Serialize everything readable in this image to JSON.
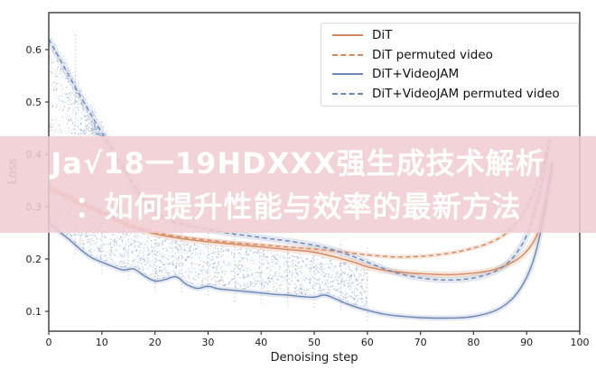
{
  "banner": {
    "line1": "Ja√18一19HDXXX强生成技术解析",
    "line2": "：如何提升性能与效率的最新方法",
    "background_color": "#f0ccd2",
    "text_color": "#ffffff"
  },
  "chart_data": {
    "type": "line",
    "title": "",
    "xlabel": "Denoising step",
    "ylabel": "Loss",
    "xlim": [
      0,
      100
    ],
    "ylim": [
      0.062,
      0.67
    ],
    "x_ticks": [
      0,
      10,
      20,
      30,
      40,
      50,
      60,
      70,
      80,
      90,
      100
    ],
    "y_ticks": [
      0.1,
      0.2,
      0.3,
      0.4,
      0.5,
      0.6
    ],
    "grid": "vertical dotted marker lines every 5 steps from 5 to 60",
    "legend_position": "upper right",
    "colors": {
      "orange": "#d4885f",
      "blue": "#6c86b4",
      "orange_band": "rgba(214,140,98,0.22)",
      "blue_band": "rgba(108,134,180,0.20)",
      "scatter_dot": "#8199c2",
      "spine": "#3a3a3a",
      "tick_label": "#1c1c1c",
      "grid_line": "#7b88a8"
    },
    "series": [
      {
        "name": "DiT",
        "color": "#d4885f",
        "style": "solid",
        "points": [
          [
            0,
            0.335
          ],
          [
            5,
            0.31
          ],
          [
            10,
            0.287
          ],
          [
            15,
            0.263
          ],
          [
            20,
            0.248
          ],
          [
            25,
            0.239
          ],
          [
            30,
            0.233
          ],
          [
            35,
            0.228
          ],
          [
            40,
            0.223
          ],
          [
            45,
            0.218
          ],
          [
            50,
            0.213
          ],
          [
            55,
            0.201
          ],
          [
            58,
            0.192
          ],
          [
            60,
            0.185
          ],
          [
            63,
            0.179
          ],
          [
            66,
            0.175
          ],
          [
            70,
            0.172
          ],
          [
            75,
            0.17
          ],
          [
            80,
            0.173
          ],
          [
            84,
            0.18
          ],
          [
            87,
            0.192
          ],
          [
            89,
            0.205
          ],
          [
            91,
            0.228
          ],
          [
            92.5,
            0.262
          ],
          [
            94,
            0.33
          ],
          [
            94.8,
            0.375
          ]
        ]
      },
      {
        "name": "DiT permuted video",
        "color": "#d4885f",
        "style": "dashed",
        "points": [
          [
            0,
            0.34
          ],
          [
            5,
            0.315
          ],
          [
            10,
            0.291
          ],
          [
            15,
            0.267
          ],
          [
            20,
            0.251
          ],
          [
            25,
            0.242
          ],
          [
            30,
            0.236
          ],
          [
            35,
            0.231
          ],
          [
            40,
            0.227
          ],
          [
            45,
            0.223
          ],
          [
            50,
            0.219
          ],
          [
            55,
            0.214
          ],
          [
            60,
            0.208
          ],
          [
            65,
            0.204
          ],
          [
            70,
            0.205
          ],
          [
            74,
            0.209
          ],
          [
            78,
            0.216
          ],
          [
            82,
            0.227
          ],
          [
            85,
            0.241
          ],
          [
            87,
            0.257
          ],
          [
            89,
            0.282
          ],
          [
            91,
            0.32
          ],
          [
            92.5,
            0.36
          ],
          [
            93.8,
            0.405
          ]
        ]
      },
      {
        "name": "DiT+VideoJAM",
        "color": "#6c86b4",
        "style": "solid",
        "points": [
          [
            0,
            0.27
          ],
          [
            2,
            0.252
          ],
          [
            4,
            0.236
          ],
          [
            6,
            0.218
          ],
          [
            8,
            0.203
          ],
          [
            10,
            0.194
          ],
          [
            12,
            0.186
          ],
          [
            14,
            0.179
          ],
          [
            16,
            0.181
          ],
          [
            18,
            0.168
          ],
          [
            20,
            0.158
          ],
          [
            22,
            0.161
          ],
          [
            24,
            0.166
          ],
          [
            26,
            0.151
          ],
          [
            28,
            0.144
          ],
          [
            30,
            0.148
          ],
          [
            32,
            0.143
          ],
          [
            35,
            0.14
          ],
          [
            38,
            0.137
          ],
          [
            40,
            0.135
          ],
          [
            43,
            0.132
          ],
          [
            45,
            0.131
          ],
          [
            48,
            0.128
          ],
          [
            50,
            0.127
          ],
          [
            52,
            0.131
          ],
          [
            54,
            0.124
          ],
          [
            56,
            0.115
          ],
          [
            58,
            0.108
          ],
          [
            60,
            0.102
          ],
          [
            63,
            0.095
          ],
          [
            66,
            0.091
          ],
          [
            70,
            0.088
          ],
          [
            74,
            0.087
          ],
          [
            78,
            0.088
          ],
          [
            81,
            0.092
          ],
          [
            84,
            0.101
          ],
          [
            86,
            0.113
          ],
          [
            88,
            0.132
          ],
          [
            90,
            0.165
          ],
          [
            91.5,
            0.205
          ],
          [
            93,
            0.27
          ],
          [
            94.2,
            0.345
          ],
          [
            94.8,
            0.385
          ]
        ]
      },
      {
        "name": "DiT+VideoJAM permuted video",
        "color": "#6c86b4",
        "style": "dashed",
        "points": [
          [
            0,
            0.62
          ],
          [
            3,
            0.565
          ],
          [
            6,
            0.51
          ],
          [
            9,
            0.458
          ],
          [
            12,
            0.408
          ],
          [
            15,
            0.358
          ],
          [
            17,
            0.325
          ],
          [
            19,
            0.3
          ],
          [
            21,
            0.284
          ],
          [
            23,
            0.273
          ],
          [
            25,
            0.267
          ],
          [
            28,
            0.26
          ],
          [
            31,
            0.254
          ],
          [
            34,
            0.249
          ],
          [
            37,
            0.245
          ],
          [
            40,
            0.241
          ],
          [
            43,
            0.237
          ],
          [
            46,
            0.233
          ],
          [
            49,
            0.228
          ],
          [
            52,
            0.222
          ],
          [
            55,
            0.213
          ],
          [
            58,
            0.202
          ],
          [
            60,
            0.194
          ],
          [
            63,
            0.182
          ],
          [
            66,
            0.172
          ],
          [
            70,
            0.164
          ],
          [
            74,
            0.16
          ],
          [
            78,
            0.161
          ],
          [
            81,
            0.166
          ],
          [
            84,
            0.176
          ],
          [
            86,
            0.189
          ],
          [
            88,
            0.21
          ],
          [
            90,
            0.245
          ],
          [
            91.5,
            0.29
          ],
          [
            93,
            0.35
          ],
          [
            94.3,
            0.428
          ]
        ]
      }
    ],
    "scatter_decoration": {
      "seed": 20240531,
      "main_cloud": {
        "count": 1700,
        "step_range": [
          0,
          60
        ],
        "between": [
          "DiT+VideoJAM",
          "DiT"
        ],
        "note": "speckled point cloud between blue curve and orange curves, ends at step 60"
      },
      "upper_cloud": {
        "count": 420,
        "step_range": [
          0,
          15
        ],
        "loss_floor": 0.435,
        "under_series": "DiT+VideoJAM permuted video"
      },
      "dashed_band_cloud": {
        "count": 260,
        "step_range": [
          0,
          22
        ],
        "around_series": "DiT+VideoJAM permuted video",
        "half_width": 0.022
      }
    }
  }
}
